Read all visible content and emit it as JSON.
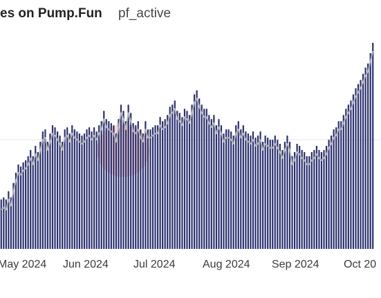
{
  "header": {
    "title": "es on Pump.Fun",
    "subtitle": "pf_active"
  },
  "colors": {
    "bar": "#2a2f6e",
    "line": "#b3b3b8",
    "grid": "#e6e6e6",
    "watermark": "#f0b4ae"
  },
  "chart_data": {
    "type": "bar",
    "title": "es on Pump.Fun",
    "subtitle": "pf_active",
    "xlabel": "",
    "ylabel": "",
    "x_tick_labels": [
      "May 2024",
      "Jun 2024",
      "Jul 2024",
      "Aug 2024",
      "Sep 2024",
      "Oct 20"
    ],
    "ylim": [
      0,
      100
    ],
    "grid": "horizontal",
    "series": [
      {
        "type": "bar",
        "values": [
          24,
          25,
          24,
          28,
          25,
          32,
          37,
          41,
          40,
          42,
          43,
          45,
          48,
          45,
          50,
          47,
          52,
          57,
          58,
          52,
          56,
          60,
          59,
          57,
          55,
          52,
          58,
          59,
          56,
          60,
          58,
          57,
          56,
          55,
          56,
          58,
          59,
          57,
          59,
          57,
          60,
          62,
          67,
          63,
          62,
          61,
          60,
          56,
          63,
          70,
          67,
          62,
          70,
          66,
          61,
          60,
          62,
          58,
          56,
          62,
          58,
          58,
          59,
          60,
          60,
          64,
          62,
          63,
          65,
          69,
          70,
          72,
          67,
          66,
          64,
          68,
          67,
          65,
          70,
          75,
          77,
          73,
          70,
          68,
          68,
          65,
          63,
          65,
          60,
          63,
          60,
          56,
          58,
          58,
          57,
          55,
          60,
          62,
          58,
          60,
          57,
          56,
          55,
          57,
          54,
          55,
          57,
          52,
          55,
          54,
          53,
          53,
          55,
          53,
          51,
          48,
          52,
          55,
          52,
          45,
          47,
          51,
          50,
          48,
          47,
          45,
          45,
          47,
          48,
          50,
          48,
          47,
          48,
          50,
          53,
          55,
          58,
          59,
          62,
          62,
          65,
          68,
          70,
          72,
          75,
          78,
          80,
          82,
          85,
          88,
          90,
          95,
          100
        ]
      },
      {
        "type": "line",
        "values": [
          19,
          20,
          19,
          24,
          21,
          28,
          33,
          37,
          36,
          38,
          39,
          41,
          44,
          41,
          46,
          43,
          48,
          53,
          54,
          48,
          52,
          56,
          55,
          53,
          51,
          48,
          54,
          55,
          52,
          56,
          54,
          53,
          52,
          51,
          52,
          54,
          55,
          53,
          55,
          53,
          56,
          58,
          63,
          59,
          58,
          57,
          56,
          52,
          59,
          66,
          63,
          58,
          66,
          62,
          57,
          56,
          58,
          54,
          52,
          58,
          54,
          54,
          55,
          56,
          56,
          60,
          58,
          59,
          61,
          65,
          66,
          68,
          63,
          62,
          60,
          64,
          63,
          61,
          66,
          71,
          73,
          69,
          66,
          64,
          64,
          61,
          59,
          61,
          56,
          59,
          56,
          52,
          54,
          54,
          53,
          51,
          56,
          58,
          54,
          56,
          53,
          52,
          51,
          53,
          50,
          51,
          53,
          48,
          51,
          50,
          49,
          49,
          51,
          49,
          47,
          44,
          48,
          51,
          48,
          41,
          43,
          47,
          46,
          44,
          43,
          41,
          41,
          43,
          44,
          46,
          44,
          43,
          44,
          46,
          49,
          51,
          54,
          55,
          58,
          58,
          61,
          64,
          66,
          68,
          71,
          74,
          76,
          78,
          81,
          84,
          86,
          91,
          96
        ]
      }
    ]
  }
}
